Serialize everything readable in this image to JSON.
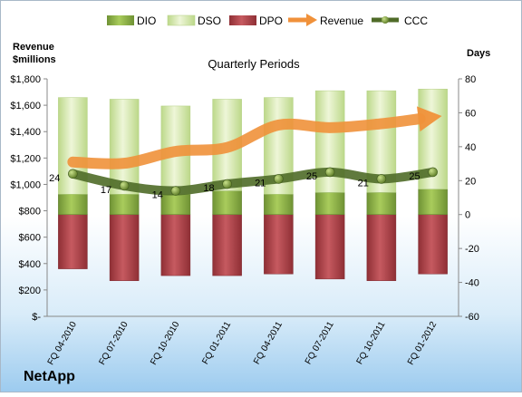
{
  "chart_data": {
    "type": "bar",
    "title": "Quarterly Periods",
    "company": "NetApp",
    "left_axis_label_line1": "Revenue",
    "left_axis_label_line2": "$millions",
    "right_axis_label": "Days",
    "categories": [
      "FQ 04-2010",
      "FQ 07-2010",
      "FQ 10-2010",
      "FQ 01-2011",
      "FQ 04-2011",
      "FQ 07-2011",
      "FQ 10-2011",
      "FQ 01-2012"
    ],
    "left_ticks": [
      "$1,800",
      "$1,600",
      "$1,400",
      "$1,200",
      "$1,000",
      "$800",
      "$600",
      "$400",
      "$200",
      "$-"
    ],
    "right_ticks": [
      "80",
      "60",
      "40",
      "20",
      "0",
      "-20",
      "-40",
      "-60"
    ],
    "left_ylim": [
      0,
      1800
    ],
    "right_ylim": [
      -60,
      80
    ],
    "legend_position": "top",
    "grid": false,
    "series": [
      {
        "name": "DIO",
        "axis": "days",
        "values": [
          12,
          12,
          12,
          14,
          12,
          13,
          13,
          15
        ],
        "color": "#8fb34a"
      },
      {
        "name": "DSO",
        "axis": "days",
        "values": [
          57,
          56,
          52,
          54,
          57,
          60,
          60,
          59
        ],
        "color": "#d7e9ad"
      },
      {
        "name": "DPO",
        "axis": "days",
        "values": [
          -32,
          -39,
          -36,
          -36,
          -35,
          -38,
          -39,
          -35
        ],
        "color": "#b3444b"
      },
      {
        "name": "Revenue",
        "axis": "revenue",
        "values": [
          1170,
          1160,
          1250,
          1280,
          1450,
          1430,
          1460,
          1510
        ],
        "color": "#f0913a"
      },
      {
        "name": "CCC",
        "axis": "days",
        "values": [
          24,
          17,
          14,
          18,
          21,
          25,
          21,
          25
        ],
        "labels": [
          "24",
          "17",
          "14",
          "18",
          "21",
          "25",
          "21",
          "25"
        ],
        "color": "#4f6b28"
      }
    ]
  }
}
